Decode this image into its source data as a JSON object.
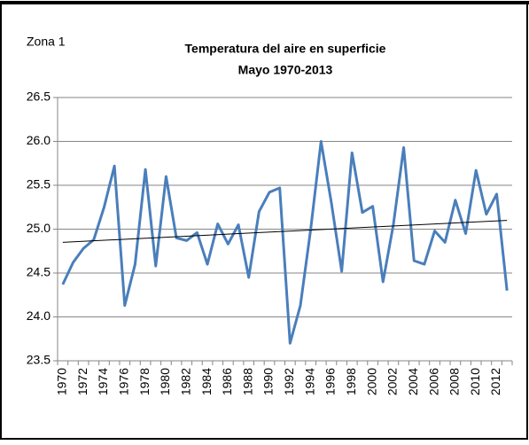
{
  "chart_data": {
    "type": "line",
    "label": "Zona  1",
    "title": "Temperatura del aire en superficie",
    "subtitle": "Mayo 1970-2013",
    "categories": [
      "1970",
      null,
      "1972",
      null,
      "1974",
      null,
      "1976",
      null,
      "1978",
      null,
      "1980",
      null,
      "1982",
      null,
      "1984",
      null,
      "1986",
      null,
      "1988",
      null,
      "1990",
      null,
      "1992",
      null,
      "1994",
      null,
      "1996",
      null,
      "1998",
      null,
      "2000",
      null,
      "2002",
      null,
      "2004",
      null,
      "2006",
      null,
      "2008",
      null,
      "2010",
      null,
      "2012",
      null
    ],
    "values": [
      24.37,
      24.62,
      24.78,
      24.88,
      25.25,
      25.72,
      24.13,
      24.6,
      25.68,
      24.58,
      25.6,
      24.9,
      24.87,
      24.96,
      24.6,
      25.06,
      24.83,
      25.05,
      24.45,
      25.2,
      25.42,
      25.47,
      23.7,
      24.13,
      25.0,
      26.0,
      25.3,
      24.52,
      25.87,
      25.19,
      25.26,
      24.4,
      25.05,
      25.93,
      24.64,
      24.6,
      24.98,
      24.85,
      25.33,
      24.95,
      25.67,
      25.17,
      25.4,
      24.3
    ],
    "color": "#4a7ebb",
    "trendline": [
      24.85,
      25.1
    ],
    "trend_color": "#000000",
    "ylim": [
      23.5,
      26.5
    ],
    "yticks": [
      23.5,
      {
        "value": 24,
        "label": "24.0"
      },
      24.5,
      {
        "value": 25,
        "label": "25.0"
      },
      25.5,
      {
        "value": 26,
        "label": "26.0"
      },
      26.5
    ],
    "grid": true
  }
}
